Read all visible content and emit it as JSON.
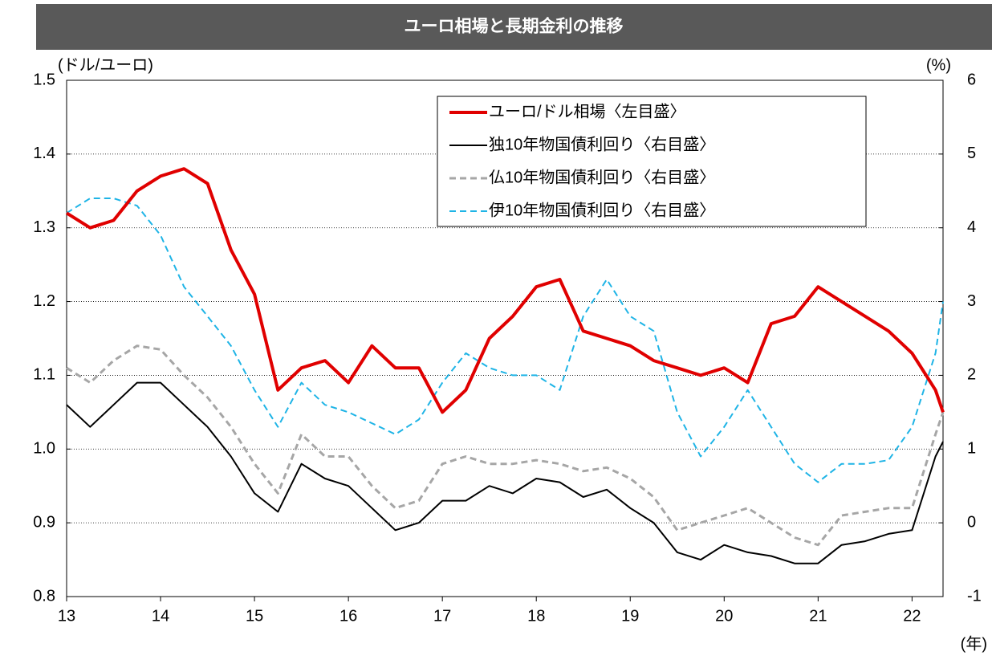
{
  "chart_data": {
    "type": "line",
    "title": "ユーロ相場と長期金利の推移",
    "y_label": "(ドル/ユーロ)",
    "y2_label": "(%)",
    "x_label": "(年)",
    "x": [
      13,
      13.25,
      13.5,
      13.75,
      14,
      14.25,
      14.5,
      14.75,
      15,
      15.25,
      15.5,
      15.75,
      16,
      16.25,
      16.5,
      16.75,
      17,
      17.25,
      17.5,
      17.75,
      18,
      18.25,
      18.5,
      18.75,
      19,
      19.25,
      19.5,
      19.75,
      20,
      20.25,
      20.5,
      20.75,
      21,
      21.25,
      21.5,
      21.75,
      22,
      22.25,
      22.33
    ],
    "xlim": [
      13,
      22.33
    ],
    "xticks": [
      13,
      14,
      15,
      16,
      17,
      18,
      19,
      20,
      21,
      22
    ],
    "ylim": [
      0.8,
      1.5
    ],
    "yticks": [
      1.5,
      1.4,
      1.3,
      1.2,
      1.1,
      {
        "value": 1,
        "label": "1.0"
      },
      0.9,
      0.8
    ],
    "y2lim": [
      -1,
      6
    ],
    "y2ticks": [
      6,
      5,
      4,
      3,
      2,
      1,
      0,
      -1
    ],
    "grid": true,
    "legend": "upper right",
    "series": [
      {
        "name": "ユーロ/ドル相場〈左目盛〉",
        "color": "#e00000",
        "style": "solid",
        "values": [
          1.32,
          1.3,
          1.31,
          1.35,
          1.37,
          1.38,
          1.36,
          1.27,
          1.21,
          1.08,
          1.11,
          1.12,
          1.09,
          1.14,
          1.11,
          1.11,
          1.05,
          1.08,
          1.15,
          1.18,
          1.22,
          1.23,
          1.16,
          1.15,
          1.14,
          1.12,
          1.11,
          1.1,
          1.11,
          1.09,
          1.17,
          1.18,
          1.22,
          1.2,
          1.18,
          1.16,
          1.13,
          1.08,
          1.05
        ]
      },
      {
        "name": "独10年物国債利回り〈右目盛〉",
        "color": "#000000",
        "style": "solid",
        "axis": "y2",
        "values": [
          1.6,
          1.3,
          1.6,
          1.9,
          1.9,
          1.6,
          1.3,
          0.9,
          0.4,
          0.15,
          0.8,
          0.6,
          0.5,
          0.2,
          -0.1,
          0.0,
          0.3,
          0.3,
          0.5,
          0.4,
          0.6,
          0.55,
          0.35,
          0.45,
          0.2,
          0.0,
          -0.4,
          -0.5,
          -0.3,
          -0.4,
          -0.45,
          -0.55,
          -0.55,
          -0.3,
          -0.25,
          -0.15,
          -0.1,
          0.9,
          1.1
        ]
      },
      {
        "name": "仏10年物国債利回り〈右目盛〉",
        "color": "#a6a6a6",
        "style": "dashed",
        "axis": "y2",
        "values": [
          2.1,
          1.9,
          2.2,
          2.4,
          2.35,
          2.0,
          1.7,
          1.3,
          0.8,
          0.4,
          1.2,
          0.9,
          0.9,
          0.5,
          0.2,
          0.3,
          0.8,
          0.9,
          0.8,
          0.8,
          0.85,
          0.8,
          0.7,
          0.75,
          0.6,
          0.35,
          -0.1,
          0.0,
          0.1,
          0.2,
          0.0,
          -0.2,
          -0.3,
          0.1,
          0.15,
          0.2,
          0.2,
          1.2,
          1.5
        ]
      },
      {
        "name": "伊10年物国債利回り〈右目盛〉",
        "color": "#1fb4e6",
        "style": "dashed",
        "axis": "y2",
        "values": [
          4.2,
          4.4,
          4.4,
          4.3,
          3.9,
          3.2,
          2.8,
          2.4,
          1.8,
          1.3,
          1.9,
          1.6,
          1.5,
          1.35,
          1.2,
          1.4,
          1.9,
          2.3,
          2.1,
          2.0,
          2.0,
          1.8,
          2.8,
          3.3,
          2.8,
          2.6,
          1.5,
          0.9,
          1.3,
          1.8,
          1.3,
          0.8,
          0.55,
          0.8,
          0.8,
          0.85,
          1.3,
          2.3,
          3.0
        ]
      }
    ]
  }
}
